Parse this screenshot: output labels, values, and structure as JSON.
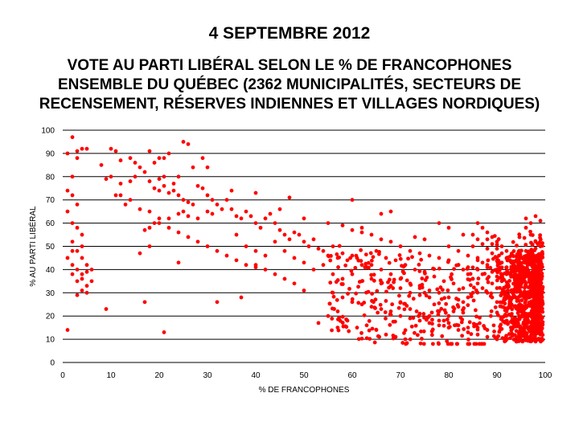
{
  "header": {
    "date": "4 SEPTEMBRE 2012",
    "title_lines": [
      "VOTE AU PARTI LIBÉRAL SELON LE % DE FRANCOPHONES",
      "ENSEMBLE DU QUÉBEC (2362 MUNICIPALITÉS, SECTEURS DE",
      "RECENSEMENT, RÉSERVES INDIENNES ET VILLAGES NORDIQUES)"
    ]
  },
  "colors": {
    "points": "#ff0000",
    "grid": "#000000"
  },
  "chart_data": {
    "type": "scatter",
    "title": "VOTE AU PARTI LIBÉRAL SELON LE % DE FRANCOPHONES ENSEMBLE DU QUÉBEC (2362 MUNICIPALITÉS, SECTEURS DE RECENSEMENT, RÉSERVES INDIENNES ET VILLAGES NORDIQUES)",
    "xlabel": "% DE FRANCOPHONES",
    "ylabel": "% AU PARTI LIBÉRAL",
    "xlim": [
      0,
      100
    ],
    "ylim": [
      0,
      100
    ],
    "xticks": [
      "0",
      "10",
      "20",
      "30",
      "40",
      "50",
      "60",
      "70",
      "80",
      "90",
      "100"
    ],
    "yticks": [
      "0",
      "10",
      "20",
      "30",
      "40",
      "50",
      "60",
      "70",
      "80",
      "90",
      "100"
    ],
    "grid": "horizontal",
    "legend": "none",
    "point_count": 2362,
    "points": [
      [
        2,
        97
      ],
      [
        4,
        92
      ],
      [
        3,
        91
      ],
      [
        1,
        90
      ],
      [
        5,
        92
      ],
      [
        10,
        92
      ],
      [
        11,
        91
      ],
      [
        8,
        85
      ],
      [
        10,
        80
      ],
      [
        9,
        79
      ],
      [
        12,
        87
      ],
      [
        14,
        88
      ],
      [
        15,
        86
      ],
      [
        16,
        84
      ],
      [
        18,
        91
      ],
      [
        20,
        88
      ],
      [
        21,
        88
      ],
      [
        22,
        90
      ],
      [
        25,
        95
      ],
      [
        26,
        94
      ],
      [
        27,
        84
      ],
      [
        30,
        84
      ],
      [
        29,
        88
      ],
      [
        19,
        86
      ],
      [
        17,
        82
      ],
      [
        15,
        80
      ],
      [
        14,
        78
      ],
      [
        12,
        77
      ],
      [
        11,
        72
      ],
      [
        13,
        68
      ],
      [
        18,
        78
      ],
      [
        19,
        75
      ],
      [
        20,
        74
      ],
      [
        21,
        76
      ],
      [
        22,
        73
      ],
      [
        23,
        74
      ],
      [
        24,
        72
      ],
      [
        25,
        70
      ],
      [
        26,
        69
      ],
      [
        27,
        68
      ],
      [
        24,
        80
      ],
      [
        23,
        77
      ],
      [
        21,
        80
      ],
      [
        20,
        79
      ],
      [
        28,
        76
      ],
      [
        29,
        75
      ],
      [
        30,
        72
      ],
      [
        31,
        70
      ],
      [
        32,
        68
      ],
      [
        33,
        66
      ],
      [
        25,
        65
      ],
      [
        24,
        64
      ],
      [
        22,
        62
      ],
      [
        18,
        58
      ],
      [
        19,
        60
      ],
      [
        20,
        62
      ],
      [
        26,
        63
      ],
      [
        28,
        62
      ],
      [
        30,
        65
      ],
      [
        31,
        64
      ],
      [
        34,
        70
      ],
      [
        35,
        66
      ],
      [
        36,
        63
      ],
      [
        37,
        62
      ],
      [
        38,
        65
      ],
      [
        39,
        63
      ],
      [
        40,
        60
      ],
      [
        41,
        58
      ],
      [
        42,
        62
      ],
      [
        43,
        64
      ],
      [
        44,
        60
      ],
      [
        45,
        57
      ],
      [
        46,
        55
      ],
      [
        47,
        53
      ],
      [
        48,
        56
      ],
      [
        49,
        55
      ],
      [
        50,
        52
      ],
      [
        51,
        50
      ],
      [
        52,
        53
      ],
      [
        53,
        49
      ],
      [
        54,
        48
      ],
      [
        55,
        46
      ],
      [
        56,
        50
      ],
      [
        57,
        45
      ],
      [
        58,
        47
      ],
      [
        59,
        44
      ],
      [
        60,
        46
      ],
      [
        61,
        45
      ],
      [
        62,
        42
      ],
      [
        63,
        41
      ],
      [
        36,
        55
      ],
      [
        38,
        50
      ],
      [
        40,
        48
      ],
      [
        42,
        46
      ],
      [
        44,
        52
      ],
      [
        46,
        48
      ],
      [
        48,
        45
      ],
      [
        50,
        43
      ],
      [
        52,
        40
      ],
      [
        54,
        42
      ],
      [
        56,
        38
      ],
      [
        58,
        36
      ],
      [
        60,
        38
      ],
      [
        62,
        35
      ],
      [
        64,
        36
      ],
      [
        66,
        34
      ],
      [
        68,
        33
      ],
      [
        70,
        32
      ],
      [
        72,
        30
      ],
      [
        74,
        29
      ],
      [
        35,
        74
      ],
      [
        40,
        73
      ],
      [
        45,
        66
      ],
      [
        47,
        71
      ],
      [
        50,
        62
      ],
      [
        55,
        60
      ],
      [
        58,
        59
      ],
      [
        60,
        57
      ],
      [
        62,
        56
      ],
      [
        64,
        55
      ],
      [
        66,
        53
      ],
      [
        68,
        52
      ],
      [
        70,
        50
      ],
      [
        72,
        48
      ],
      [
        74,
        47
      ],
      [
        76,
        46
      ],
      [
        78,
        45
      ],
      [
        80,
        44
      ],
      [
        82,
        42
      ],
      [
        84,
        41
      ],
      [
        65,
        48
      ],
      [
        67,
        45
      ],
      [
        69,
        44
      ],
      [
        71,
        42
      ],
      [
        73,
        40
      ],
      [
        75,
        39
      ],
      [
        77,
        37
      ],
      [
        79,
        35
      ],
      [
        81,
        34
      ],
      [
        83,
        32
      ],
      [
        64,
        42
      ],
      [
        66,
        40
      ],
      [
        68,
        38
      ],
      [
        70,
        36
      ],
      [
        72,
        34
      ],
      [
        74,
        33
      ],
      [
        76,
        31
      ],
      [
        78,
        30
      ],
      [
        80,
        28
      ],
      [
        82,
        27
      ],
      [
        56,
        30
      ],
      [
        58,
        28
      ],
      [
        60,
        26
      ],
      [
        62,
        25
      ],
      [
        64,
        24
      ],
      [
        66,
        23
      ],
      [
        68,
        22
      ],
      [
        70,
        20
      ],
      [
        72,
        19
      ],
      [
        74,
        18
      ],
      [
        76,
        17
      ],
      [
        78,
        16
      ],
      [
        80,
        15
      ],
      [
        82,
        14
      ],
      [
        84,
        13
      ],
      [
        86,
        12
      ],
      [
        88,
        11
      ],
      [
        90,
        10
      ],
      [
        92,
        10
      ],
      [
        94,
        9
      ],
      [
        53,
        17
      ],
      [
        55,
        20
      ],
      [
        57,
        22
      ],
      [
        59,
        18
      ],
      [
        61,
        15
      ],
      [
        63,
        16
      ],
      [
        65,
        14
      ],
      [
        67,
        12
      ],
      [
        69,
        11
      ],
      [
        71,
        10
      ],
      [
        50,
        31
      ],
      [
        48,
        34
      ],
      [
        46,
        36
      ],
      [
        44,
        38
      ],
      [
        42,
        40
      ],
      [
        40,
        41
      ],
      [
        38,
        42
      ],
      [
        36,
        44
      ],
      [
        34,
        46
      ],
      [
        32,
        48
      ],
      [
        30,
        50
      ],
      [
        28,
        52
      ],
      [
        26,
        54
      ],
      [
        24,
        56
      ],
      [
        22,
        58
      ],
      [
        20,
        60
      ],
      [
        18,
        65
      ],
      [
        16,
        66
      ],
      [
        14,
        70
      ],
      [
        12,
        72
      ],
      [
        3,
        88
      ],
      [
        2,
        80
      ],
      [
        1,
        74
      ],
      [
        2,
        72
      ],
      [
        3,
        68
      ],
      [
        1,
        65
      ],
      [
        2,
        60
      ],
      [
        3,
        58
      ],
      [
        4,
        55
      ],
      [
        2,
        52
      ],
      [
        3,
        48
      ],
      [
        4,
        45
      ],
      [
        5,
        42
      ],
      [
        3,
        40
      ],
      [
        2,
        38
      ],
      [
        4,
        36
      ],
      [
        3,
        35
      ],
      [
        5,
        33
      ],
      [
        4,
        31
      ],
      [
        3,
        29
      ],
      [
        1,
        14
      ],
      [
        6,
        40
      ],
      [
        5,
        39
      ],
      [
        4,
        38
      ],
      [
        6,
        35
      ],
      [
        5,
        30
      ],
      [
        2,
        48
      ],
      [
        1,
        45
      ],
      [
        2,
        42
      ],
      [
        4,
        50
      ],
      [
        9,
        23
      ],
      [
        17,
        26
      ],
      [
        21,
        13
      ],
      [
        16,
        47
      ],
      [
        17,
        57
      ],
      [
        18,
        50
      ],
      [
        24,
        43
      ],
      [
        32,
        26
      ],
      [
        37,
        28
      ],
      [
        40,
        42
      ],
      [
        86,
        60
      ],
      [
        87,
        58
      ],
      [
        88,
        56
      ],
      [
        89,
        54
      ],
      [
        90,
        52
      ],
      [
        91,
        50
      ],
      [
        92,
        48
      ],
      [
        93,
        46
      ],
      [
        94,
        44
      ],
      [
        95,
        42
      ],
      [
        85,
        55
      ],
      [
        86,
        53
      ],
      [
        87,
        51
      ],
      [
        88,
        49
      ],
      [
        89,
        47
      ],
      [
        90,
        45
      ],
      [
        91,
        43
      ],
      [
        92,
        41
      ],
      [
        93,
        39
      ],
      [
        94,
        37
      ],
      [
        80,
        50
      ],
      [
        82,
        48
      ],
      [
        84,
        46
      ],
      [
        86,
        44
      ],
      [
        88,
        42
      ],
      [
        90,
        40
      ],
      [
        92,
        38
      ],
      [
        94,
        36
      ],
      [
        96,
        34
      ],
      [
        98,
        32
      ],
      [
        96,
        62
      ],
      [
        97,
        60
      ],
      [
        98,
        63
      ],
      [
        99,
        61
      ],
      [
        96,
        58
      ],
      [
        97,
        55
      ],
      [
        98,
        52
      ],
      [
        99,
        50
      ],
      [
        96,
        48
      ],
      [
        97,
        45
      ],
      [
        98,
        44
      ],
      [
        99,
        42
      ],
      [
        96,
        40
      ],
      [
        97,
        38
      ],
      [
        98,
        36
      ],
      [
        99,
        35
      ],
      [
        96,
        33
      ],
      [
        97,
        31
      ],
      [
        98,
        30
      ],
      [
        99,
        28
      ],
      [
        96,
        27
      ],
      [
        97,
        25
      ],
      [
        98,
        24
      ],
      [
        99,
        22
      ],
      [
        96,
        21
      ],
      [
        97,
        20
      ],
      [
        98,
        18
      ],
      [
        99,
        17
      ],
      [
        96,
        16
      ],
      [
        97,
        14
      ],
      [
        98,
        13
      ],
      [
        99,
        12
      ],
      [
        96,
        11
      ],
      [
        97,
        10
      ],
      [
        98,
        9
      ],
      [
        99,
        10
      ],
      [
        95,
        15
      ],
      [
        94,
        18
      ],
      [
        93,
        20
      ],
      [
        92,
        22
      ],
      [
        91,
        24
      ],
      [
        90,
        26
      ],
      [
        89,
        28
      ],
      [
        88,
        30
      ],
      [
        87,
        32
      ],
      [
        86,
        34
      ],
      [
        85,
        36
      ],
      [
        84,
        38
      ],
      [
        83,
        40
      ],
      [
        82,
        42
      ],
      [
        93,
        25
      ],
      [
        92,
        28
      ],
      [
        91,
        30
      ],
      [
        90,
        32
      ],
      [
        89,
        34
      ],
      [
        88,
        36
      ],
      [
        87,
        38
      ],
      [
        86,
        40
      ],
      [
        85,
        30
      ],
      [
        84,
        28
      ],
      [
        83,
        26
      ],
      [
        82,
        24
      ],
      [
        81,
        22
      ],
      [
        80,
        20
      ],
      [
        79,
        18
      ],
      [
        78,
        22
      ],
      [
        77,
        25
      ],
      [
        76,
        28
      ],
      [
        75,
        30
      ],
      [
        74,
        32
      ],
      [
        95,
        30
      ],
      [
        94,
        28
      ],
      [
        93,
        31
      ],
      [
        92,
        33
      ],
      [
        91,
        35
      ],
      [
        90,
        37
      ],
      [
        89,
        39
      ],
      [
        88,
        41
      ],
      [
        87,
        43
      ],
      [
        86,
        45
      ],
      [
        97,
        35
      ],
      [
        96,
        37
      ],
      [
        95,
        39
      ],
      [
        94,
        41
      ],
      [
        93,
        43
      ],
      [
        92,
        45
      ],
      [
        91,
        47
      ],
      [
        90,
        49
      ],
      [
        89,
        51
      ],
      [
        88,
        53
      ],
      [
        66,
        64
      ],
      [
        60,
        70
      ],
      [
        62,
        58
      ],
      [
        68,
        65
      ],
      [
        73,
        54
      ],
      [
        75,
        53
      ],
      [
        78,
        60
      ],
      [
        80,
        58
      ],
      [
        83,
        55
      ],
      [
        85,
        50
      ],
      [
        70,
        26
      ],
      [
        72,
        23
      ],
      [
        74,
        21
      ],
      [
        76,
        20
      ],
      [
        78,
        18
      ],
      [
        80,
        17
      ],
      [
        82,
        16
      ],
      [
        84,
        15
      ],
      [
        86,
        15
      ],
      [
        88,
        14
      ]
    ]
  }
}
